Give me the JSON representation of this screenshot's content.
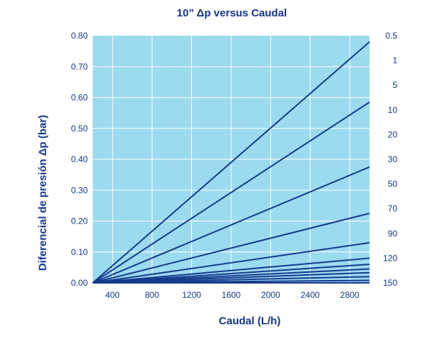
{
  "chart_data": {
    "type": "line",
    "title": "10” Δp versus Caudal",
    "xlabel": "Caudal (L/h)",
    "ylabel": "Diferencial de presión Δp (bar)",
    "xlim": [
      200,
      3000
    ],
    "ylim": [
      0,
      0.8
    ],
    "grid": true,
    "x_ticks": [
      {
        "value": 400,
        "label": "400"
      },
      {
        "value": 800,
        "label": "800"
      },
      {
        "value": 1200,
        "label": "1200"
      },
      {
        "value": 1600,
        "label": "1600"
      },
      {
        "value": 2000,
        "label": "2000"
      },
      {
        "value": 2400,
        "label": "2400"
      },
      {
        "value": 2800,
        "label": "2800"
      }
    ],
    "y_ticks": [
      {
        "value": 0.0,
        "label": "0.00"
      },
      {
        "value": 0.1,
        "label": "0.10"
      },
      {
        "value": 0.2,
        "label": "0.20"
      },
      {
        "value": 0.3,
        "label": "0.30"
      },
      {
        "value": 0.4,
        "label": "0.40"
      },
      {
        "value": 0.5,
        "label": "0.50"
      },
      {
        "value": 0.6,
        "label": "0.60"
      },
      {
        "value": 0.7,
        "label": "0.70"
      },
      {
        "value": 0.8,
        "label": "0.80"
      }
    ],
    "right_labels": [
      {
        "value": 0.8,
        "label": "0.5"
      },
      {
        "value": 0.7,
        "label": "1"
      },
      {
        "value": 0.6,
        "label": "5"
      },
      {
        "value": 0.5,
        "label": "10"
      },
      {
        "value": 0.4,
        "label": "20"
      },
      {
        "value": 0.3,
        "label": "30"
      },
      {
        "value": 0.2,
        "label": "50"
      },
      {
        "value": 0.1,
        "label": "70"
      },
      {
        "value": 0.0,
        "label": "90"
      },
      {
        "value": -0.1,
        "label": "120"
      },
      {
        "value": -0.2,
        "label": "150"
      }
    ],
    "series": [
      {
        "name": "0.5",
        "x": [
          200,
          3000
        ],
        "y": [
          0,
          0.78
        ]
      },
      {
        "name": "1",
        "x": [
          200,
          3000
        ],
        "y": [
          0,
          0.585
        ]
      },
      {
        "name": "5",
        "x": [
          200,
          3000
        ],
        "y": [
          0,
          0.375
        ]
      },
      {
        "name": "10",
        "x": [
          200,
          3000
        ],
        "y": [
          0,
          0.225
        ]
      },
      {
        "name": "20",
        "x": [
          200,
          3000
        ],
        "y": [
          0,
          0.13
        ]
      },
      {
        "name": "30",
        "x": [
          200,
          3000
        ],
        "y": [
          0,
          0.08
        ]
      },
      {
        "name": "50",
        "x": [
          200,
          3000
        ],
        "y": [
          0,
          0.06
        ]
      },
      {
        "name": "70",
        "x": [
          200,
          3000
        ],
        "y": [
          0,
          0.045
        ]
      },
      {
        "name": "90",
        "x": [
          200,
          3000
        ],
        "y": [
          0,
          0.033
        ]
      },
      {
        "name": "120",
        "x": [
          200,
          3000
        ],
        "y": [
          0,
          0.02
        ]
      },
      {
        "name": "150",
        "x": [
          200,
          3000
        ],
        "y": [
          0,
          0.008
        ]
      }
    ],
    "colors": {
      "plot_background": "#9cdaf0",
      "grid": "#ffffff",
      "line": "#163a8c",
      "text": "#15358b"
    }
  }
}
